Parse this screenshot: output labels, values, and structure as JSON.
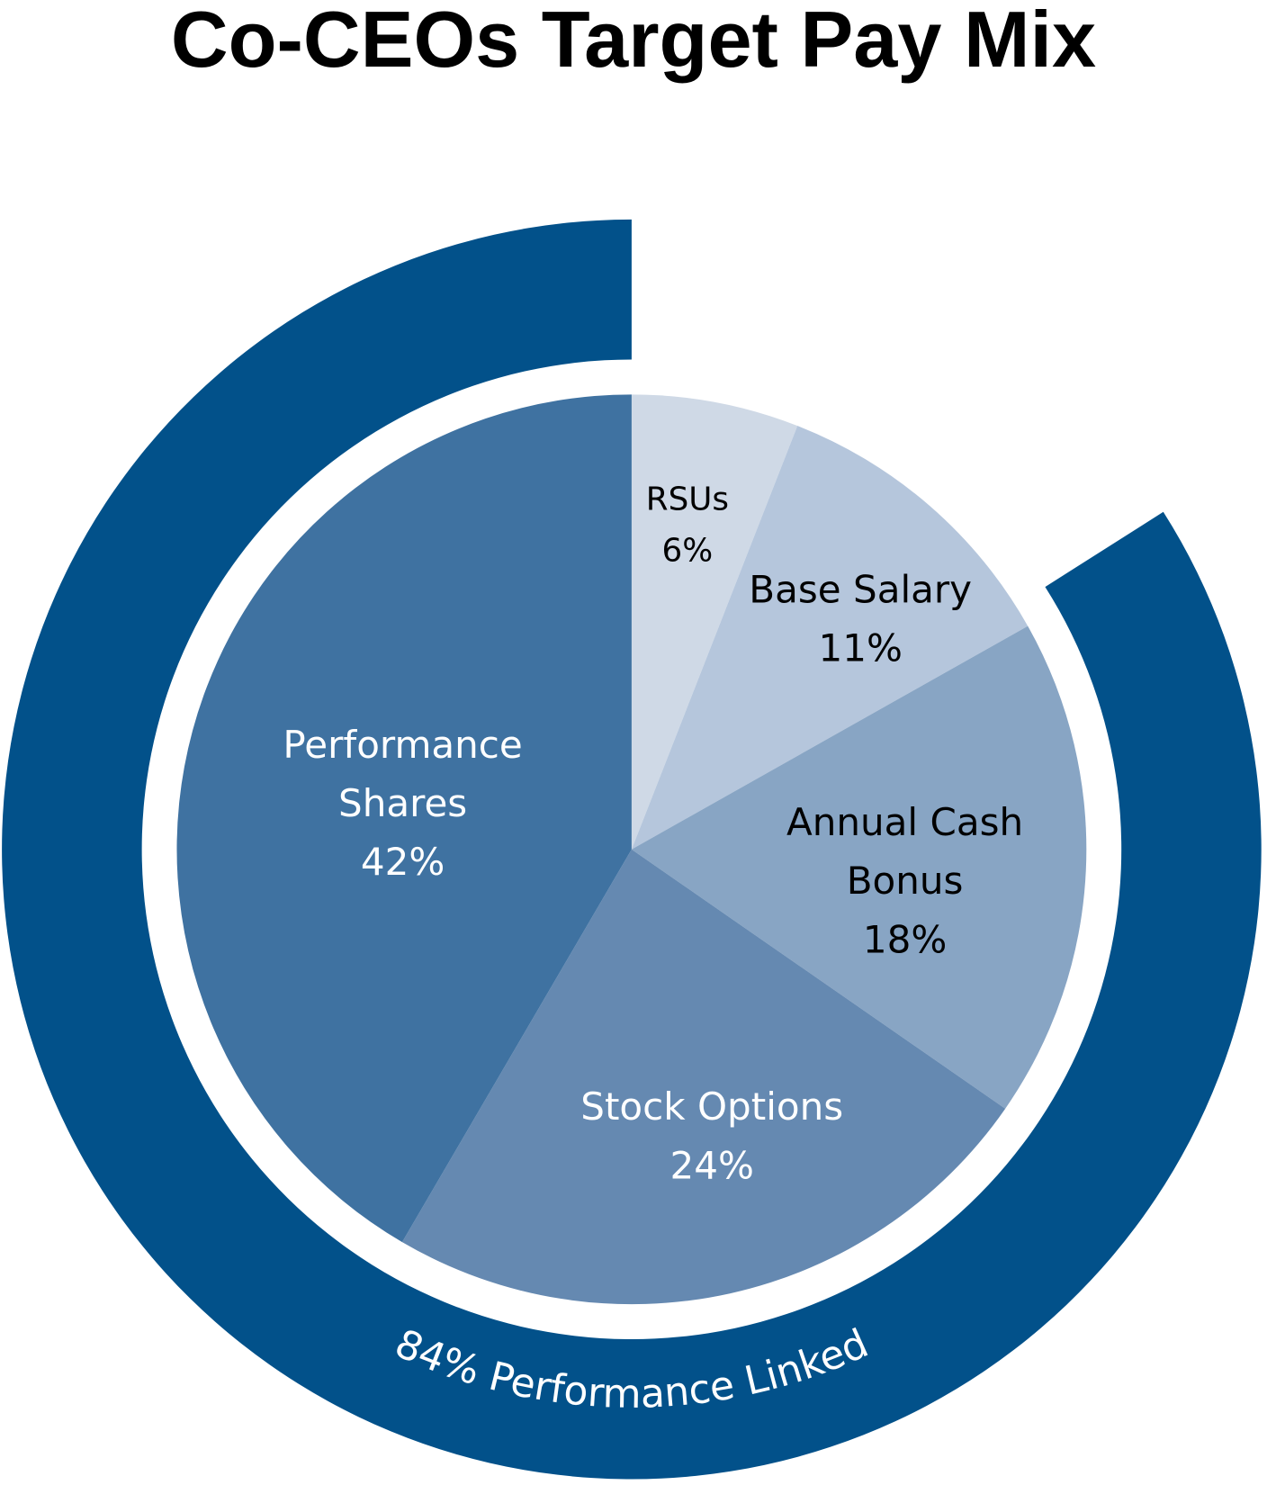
{
  "chart_data": {
    "type": "pie",
    "title": "Co-CEOs Target Pay Mix",
    "categories": [
      "RSUs",
      "Base Salary",
      "Annual Cash Bonus",
      "Stock Options",
      "Performance Shares"
    ],
    "values": [
      6,
      11,
      18,
      24,
      42
    ],
    "value_labels": [
      "6%",
      "11%",
      "18%",
      "24%",
      "42%"
    ],
    "colors": [
      "#cfd9e6",
      "#b5c6dc",
      "#88a5c4",
      "#6589b1",
      "#3f72a1"
    ],
    "label_colors": [
      "#000000",
      "#000000",
      "#000000",
      "#ffffff",
      "#ffffff"
    ],
    "ring": {
      "value": 84,
      "label": "84% Performance Linked",
      "color": "#02518a"
    }
  }
}
